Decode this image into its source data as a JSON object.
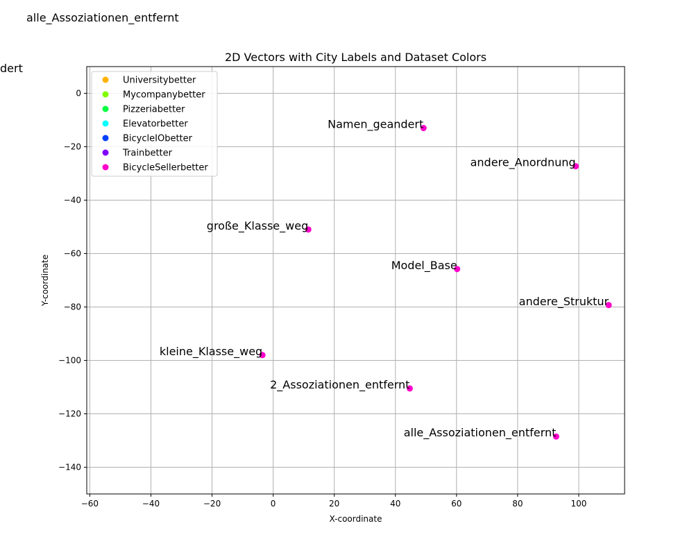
{
  "chart_data": {
    "type": "scatter",
    "title": "2D Vectors with City Labels and Dataset Colors",
    "xlabel": "X-coordinate",
    "ylabel": "Y-coordinate",
    "xlim": [
      -61,
      115
    ],
    "ylim": [
      -150,
      10
    ],
    "xticks": [
      -60,
      -40,
      -20,
      0,
      20,
      40,
      60,
      80,
      100
    ],
    "yticks": [
      0,
      -20,
      -40,
      -60,
      -80,
      -100,
      -120,
      -140
    ],
    "grid": true,
    "legend_position": "top-left",
    "legend": [
      {
        "name": "Universitybetter",
        "color": "#ffb300"
      },
      {
        "name": "Mycompanybetter",
        "color": "#80ff00"
      },
      {
        "name": "Pizzeriabetter",
        "color": "#00ff40"
      },
      {
        "name": "Elevatorbetter",
        "color": "#00ffff"
      },
      {
        "name": "BicycleIObetter",
        "color": "#0040ff"
      },
      {
        "name": "Trainbetter",
        "color": "#8000ff"
      },
      {
        "name": "BicycleSellerbetter",
        "color": "#ff00cc"
      }
    ],
    "series": [
      {
        "name": "BicycleSellerbetter",
        "color": "#ff00cc",
        "points": [
          {
            "x": 49.2,
            "y": -13,
            "label": "Namen_geandert"
          },
          {
            "x": 99.0,
            "y": -27.3,
            "label": "andere_Anordnung"
          },
          {
            "x": 11.5,
            "y": -51,
            "label": "große_Klasse_weg"
          },
          {
            "x": 60.2,
            "y": -65.8,
            "label": "Model_Base"
          },
          {
            "x": 109.8,
            "y": -79.3,
            "label": "andere_Struktur"
          },
          {
            "x": -3.5,
            "y": -98,
            "label": "kleine_Klasse_weg"
          },
          {
            "x": 44.7,
            "y": -110.5,
            "label": "2_Assoziationen_entfernt"
          },
          {
            "x": 92.6,
            "y": -128.5,
            "label": "alle_Assoziationen_entfernt"
          }
        ]
      }
    ],
    "outside_labels": [
      "alle_Assoziationen_entfernt",
      "dert"
    ]
  }
}
